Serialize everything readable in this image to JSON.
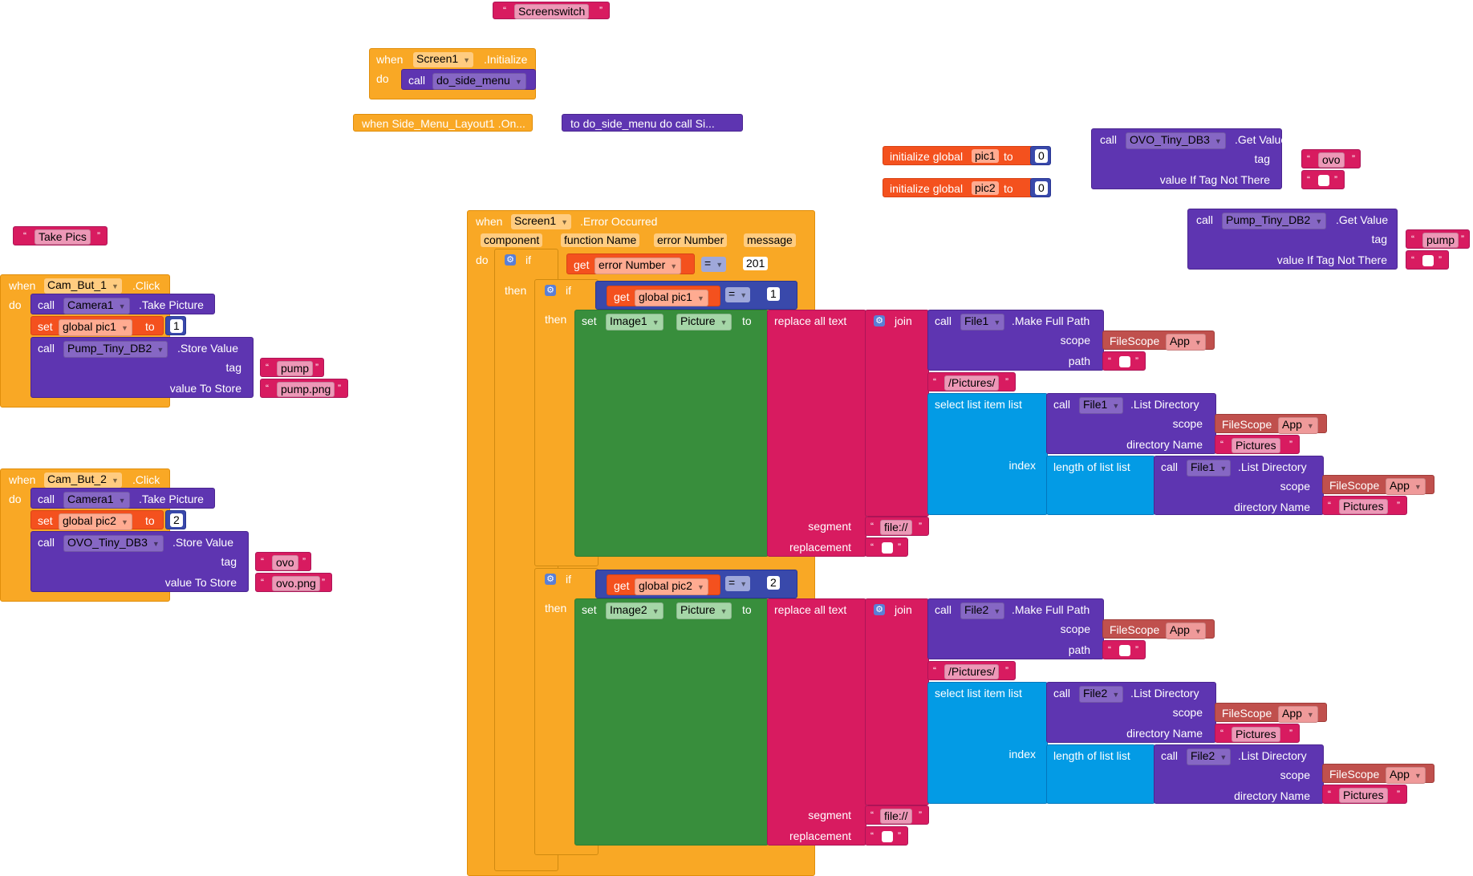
{
  "texts": {
    "screenswitch": "Screenswitch",
    "take_pics": "Take Pics",
    "pump": "pump",
    "pump_png": "pump.png",
    "ovo": "ovo",
    "ovo_png": "ovo.png",
    "pictures_path": "/Pictures/",
    "pictures": "Pictures",
    "file_prefix": "file://"
  },
  "keywords": {
    "when": "when",
    "do": "do",
    "call": "call",
    "set": "set",
    "to": "to",
    "get": "get",
    "if": "if",
    "then": "then",
    "initialize_global": "initialize global",
    "tag": "tag",
    "value_to_store": "value To Store",
    "value_if_tag_not_there": "value If Tag Not There",
    "store_value": ".Store Value",
    "get_value": ".Get Value",
    "take_picture": ".Take Picture",
    "click": ".Click",
    "initialize": ".Initialize",
    "error_occurred": ".Error Occurred",
    "replace_all_text": "replace all text",
    "segment": "segment",
    "replacement": "replacement",
    "join": "join",
    "make_full_path": ".Make Full Path",
    "scope": "scope",
    "path": "path",
    "select_list_item": "select list item  list",
    "index": "index",
    "list_directory": ".List Directory",
    "directory_name": "directory Name",
    "length_of_list": "length of list  list",
    "picture": "Picture",
    "filescope": "FileScope",
    "app": "App",
    "equals": "="
  },
  "components": {
    "screen1": "Screen1",
    "do_side_menu": "do_side_menu",
    "side_menu_collapsed": "when  Side_Menu_Layout1 .On...",
    "proc_collapsed": "to do_side_menu do call  Si...",
    "cam_but_1": "Cam_But_1",
    "cam_but_2": "Cam_But_2",
    "camera1": "Camera1",
    "pump_db": "Pump_Tiny_DB2",
    "ovo_db": "OVO_Tiny_DB3",
    "file1": "File1",
    "file2": "File2",
    "image1": "Image1",
    "image2": "Image2"
  },
  "globals": {
    "pic1": "pic1",
    "pic2": "pic2",
    "global_pic1": "global pic1",
    "global_pic2": "global pic2",
    "init_value": "0",
    "pic1_set": "1",
    "pic2_set": "2"
  },
  "error_event": {
    "params": [
      "component",
      "function Name",
      "error Number",
      "message"
    ],
    "error_number": "error Number",
    "error_value": "201"
  },
  "colors": {
    "event": "#f9a825",
    "procedure": "#5e35b1",
    "variable": "#f4511e",
    "text": "#d81b60",
    "math": "#3949ab",
    "list": "#039be5",
    "component": "#388e3c",
    "filescope": "#c0504d"
  }
}
